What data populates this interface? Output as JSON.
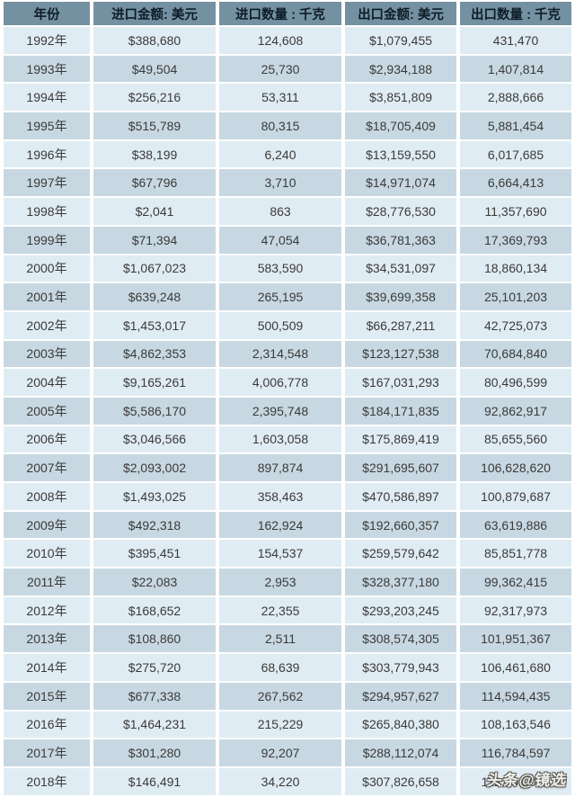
{
  "chart_data": {
    "type": "table",
    "title": "",
    "columns": [
      "年份",
      "进口金额: 美元",
      "进口数量 : 千克",
      "出口金额: 美元",
      "出口数量 : 千克"
    ],
    "rows": [
      [
        "1992年",
        "$388,680",
        "124,608",
        "$1,079,455",
        "431,470"
      ],
      [
        "1993年",
        "$49,504",
        "25,730",
        "$2,934,188",
        "1,407,814"
      ],
      [
        "1994年",
        "$256,216",
        "53,311",
        "$3,851,809",
        "2,888,666"
      ],
      [
        "1995年",
        "$515,789",
        "80,315",
        "$18,705,409",
        "5,881,454"
      ],
      [
        "1996年",
        "$38,199",
        "6,240",
        "$13,159,550",
        "6,017,685"
      ],
      [
        "1997年",
        "$67,796",
        "3,710",
        "$14,971,074",
        "6,664,413"
      ],
      [
        "1998年",
        "$2,041",
        "863",
        "$28,776,530",
        "11,357,690"
      ],
      [
        "1999年",
        "$71,394",
        "47,054",
        "$36,781,363",
        "17,369,793"
      ],
      [
        "2000年",
        "$1,067,023",
        "583,590",
        "$34,531,097",
        "18,860,134"
      ],
      [
        "2001年",
        "$639,248",
        "265,195",
        "$39,699,358",
        "25,101,203"
      ],
      [
        "2002年",
        "$1,453,017",
        "500,509",
        "$66,287,211",
        "42,725,073"
      ],
      [
        "2003年",
        "$4,862,353",
        "2,314,548",
        "$123,127,538",
        "70,684,840"
      ],
      [
        "2004年",
        "$9,165,261",
        "4,006,778",
        "$167,031,293",
        "80,496,599"
      ],
      [
        "2005年",
        "$5,586,170",
        "2,395,748",
        "$184,171,835",
        "92,862,917"
      ],
      [
        "2006年",
        "$3,046,566",
        "1,603,058",
        "$175,869,419",
        "85,655,560"
      ],
      [
        "2007年",
        "$2,093,002",
        "897,874",
        "$291,695,607",
        "106,628,620"
      ],
      [
        "2008年",
        "$1,493,025",
        "358,463",
        "$470,586,897",
        "100,879,687"
      ],
      [
        "2009年",
        "$492,318",
        "162,924",
        "$192,660,357",
        "63,619,886"
      ],
      [
        "2010年",
        "$395,451",
        "154,537",
        "$259,579,642",
        "85,851,778"
      ],
      [
        "2011年",
        "$22,083",
        "2,953",
        "$328,377,180",
        "99,362,415"
      ],
      [
        "2012年",
        "$168,652",
        "22,355",
        "$293,203,245",
        "92,317,973"
      ],
      [
        "2013年",
        "$108,860",
        "2,511",
        "$308,574,305",
        "101,951,367"
      ],
      [
        "2014年",
        "$275,720",
        "68,639",
        "$303,779,943",
        "106,461,680"
      ],
      [
        "2015年",
        "$677,338",
        "267,562",
        "$294,957,627",
        "114,594,435"
      ],
      [
        "2016年",
        "$1,464,231",
        "215,229",
        "$265,840,380",
        "108,163,546"
      ],
      [
        "2017年",
        "$301,280",
        "92,207",
        "$288,112,074",
        "116,784,597"
      ],
      [
        "2018年",
        "$146,491",
        "34,220",
        "$307,826,658",
        "112,705,088"
      ]
    ]
  },
  "watermark": {
    "text": "头条@镜选"
  },
  "colors": {
    "header_bg": "#7491A1",
    "header_text": "#0d1c27",
    "row_light": "#E0ECF3",
    "row_dark": "#C8D8E2",
    "cell_text": "#3a3a3a",
    "gap": "#ffffff"
  }
}
